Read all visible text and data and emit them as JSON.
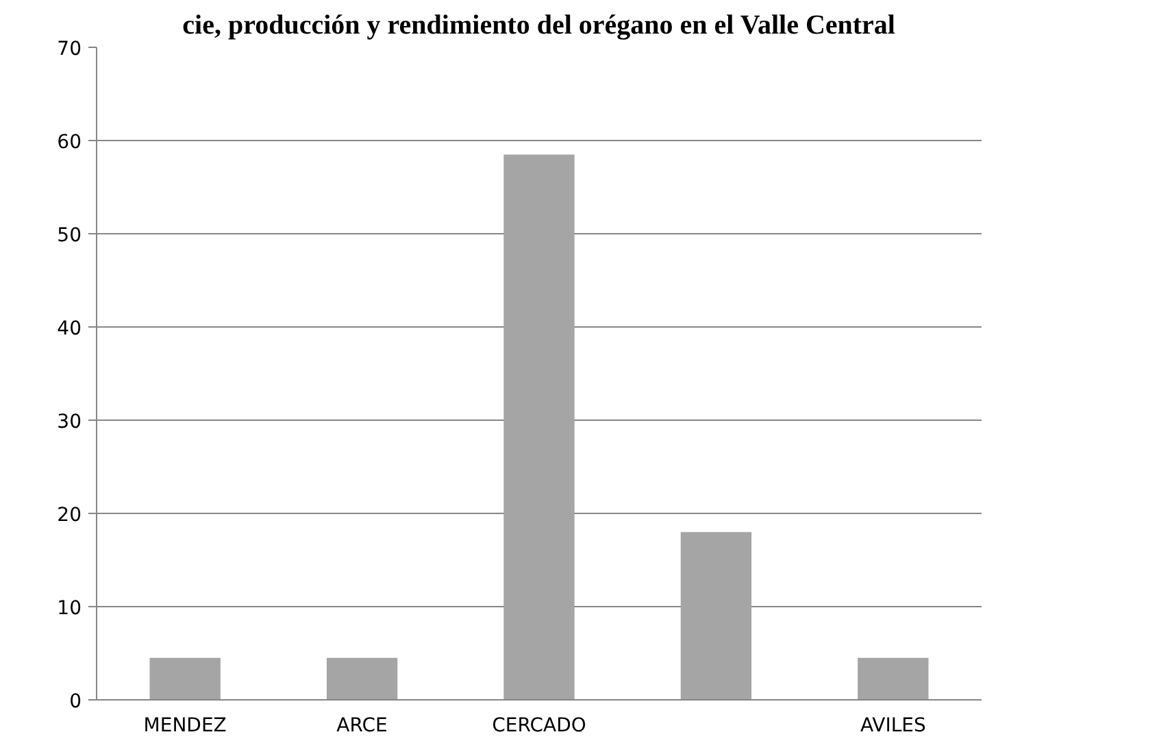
{
  "chart_data": {
    "type": "bar",
    "title": "cie, producción y rendimiento del orégano en el Valle Central",
    "categories": [
      "MENDEZ",
      "ARCE",
      "CERCADO",
      null,
      "AVILES"
    ],
    "values": [
      4.5,
      4.5,
      58.5,
      18,
      4.5
    ],
    "color": "#a5a5a5",
    "ylim": [
      0,
      70
    ],
    "yticks": [
      0,
      10,
      20,
      30,
      40,
      50,
      60,
      70
    ],
    "grid": "y"
  }
}
